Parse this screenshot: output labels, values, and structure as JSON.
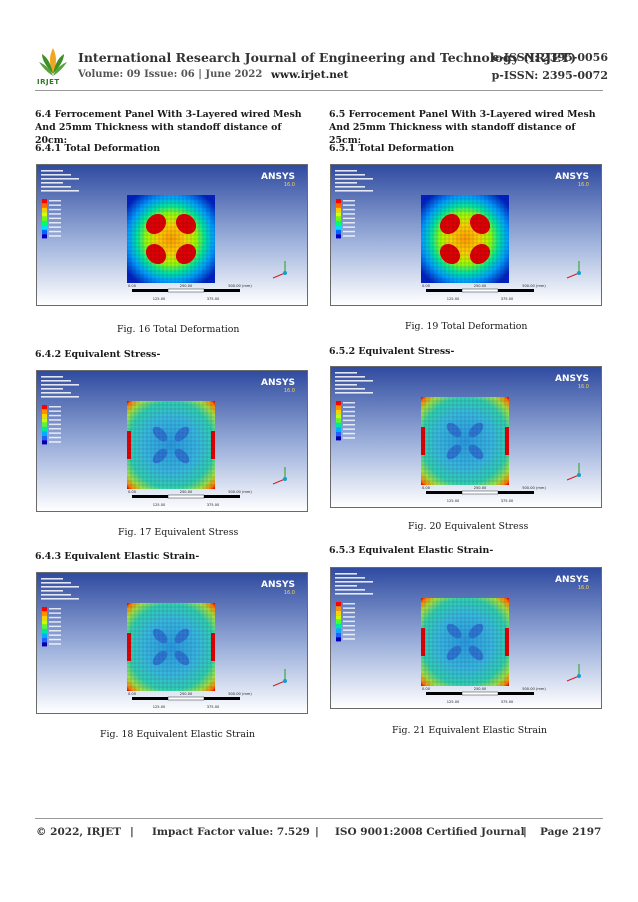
{
  "header": {
    "logo_text": "IRJET",
    "journal_title": "International Research Journal of Engineering and Technology (IRJET)",
    "eissn": "e-ISSN: 2395-0056",
    "volume": "Volume: 09 Issue: 06 | June 2022",
    "website": "www.irjet.net",
    "pissn": "p-ISSN: 2395-0072"
  },
  "left": {
    "section_title": "6.4 Ferrocement Panel With 3-Layered wired Mesh And 25mm Thickness with standoff distance of 20cm:",
    "h1": "6.4.1 Total Deformation",
    "cap1": "Fig. 16 Total Deformation",
    "h2": "6.4.2 Equivalent Stress-",
    "cap2": "Fig. 17 Equivalent Stress",
    "h3": "6.4.3 Equivalent Elastic Strain-",
    "cap3": "Fig. 18 Equivalent Elastic Strain"
  },
  "right": {
    "section_title": "6.5 Ferrocement Panel With 3-Layered wired Mesh And 25mm Thickness with standoff distance of 25cm:",
    "h1": "6.5.1 Total Deformation",
    "cap1": "Fig. 19 Total Deformation",
    "h2": "6.5.2 Equivalent Stress-",
    "cap2": "Fig. 20 Equivalent Stress",
    "h3": "6.5.3 Equivalent Elastic Strain-",
    "cap3": "Fig. 21 Equivalent Elastic Strain"
  },
  "figure": {
    "brand": "ANSYS",
    "version": "16.0",
    "scale_labels": [
      "0.00",
      "250.00",
      "500.00 (mm)",
      "125.00",
      "375.00"
    ]
  },
  "footer": {
    "copyright": "© 2022, IRJET",
    "sep": "|",
    "impact": "Impact Factor value: 7.529",
    "iso": "ISO 9001:2008 Certified Journal",
    "page": "Page 2197"
  },
  "colors": {
    "ansys_bg_top": "#2f4ba0",
    "ansys_bg_bottom": "#ffffff",
    "header_green": "#2f7c25"
  }
}
